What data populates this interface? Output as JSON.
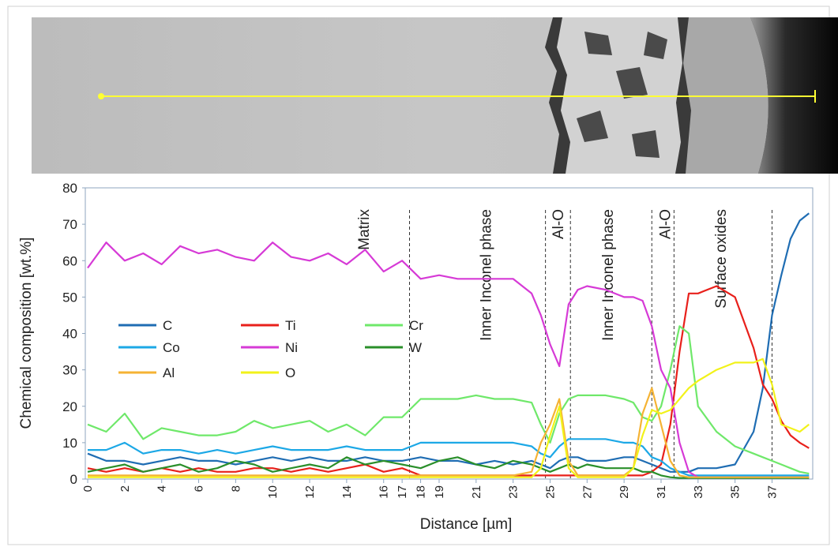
{
  "chart_data": {
    "type": "line",
    "xlabel": "Distance [µm]",
    "ylabel": "Chemical composition [wt.%]",
    "xlim": [
      -0.13,
      39.2
    ],
    "ylim": [
      0,
      80
    ],
    "xticks": [
      0,
      2,
      4,
      6,
      8,
      10,
      12,
      14,
      16,
      17,
      18,
      19,
      21,
      23,
      25,
      27,
      29,
      31,
      33,
      35,
      37
    ],
    "yticks": [
      0,
      10,
      20,
      30,
      40,
      50,
      60,
      70,
      80
    ],
    "x": [
      0,
      1,
      2,
      3,
      4,
      5,
      6,
      7,
      8,
      9,
      10,
      11,
      12,
      13,
      14,
      15,
      16,
      17,
      18,
      19,
      20,
      21,
      22,
      23,
      24,
      24.5,
      25,
      25.5,
      26,
      26.5,
      27,
      28,
      29,
      29.5,
      30,
      30.5,
      31,
      31.5,
      32,
      32.5,
      33,
      34,
      35,
      36,
      36.5,
      37,
      37.5,
      38,
      38.5,
      39
    ],
    "series": [
      {
        "name": "C",
        "color": "#1f6db3",
        "values": [
          7,
          5,
          5,
          4,
          5,
          6,
          5,
          5,
          4,
          5,
          6,
          5,
          6,
          5,
          5,
          6,
          5,
          5,
          6,
          5,
          5,
          4,
          5,
          4,
          5,
          4,
          3,
          5,
          6,
          6,
          5,
          5,
          6,
          6,
          5,
          4,
          3,
          2,
          2,
          2,
          3,
          3,
          4,
          13,
          25,
          45,
          56,
          66,
          71,
          73
        ]
      },
      {
        "name": "Ti",
        "color": "#e8201b",
        "values": [
          3,
          2,
          3,
          2,
          3,
          2,
          3,
          2,
          2,
          3,
          3,
          2,
          3,
          2,
          3,
          4,
          2,
          3,
          1,
          1,
          1,
          1,
          1,
          1,
          1,
          1,
          1,
          1,
          1,
          1,
          1,
          1,
          1,
          1,
          1,
          2,
          4,
          15,
          35,
          51,
          51,
          53,
          50,
          36,
          26,
          22,
          16,
          12,
          10,
          8.5
        ]
      },
      {
        "name": "Cr",
        "color": "#6fe86a",
        "values": [
          15,
          13,
          18,
          11,
          14,
          13,
          12,
          12,
          13,
          16,
          14,
          15,
          16,
          13,
          15,
          12,
          17,
          17,
          22,
          22,
          22,
          23,
          22,
          22,
          21,
          15,
          10,
          18,
          22,
          23,
          23,
          23,
          22,
          21,
          17,
          16,
          20,
          30,
          42,
          40,
          20,
          13,
          9,
          7,
          6,
          5,
          4,
          3,
          2,
          1.5
        ]
      },
      {
        "name": "Co",
        "color": "#1ca8e6",
        "values": [
          8,
          8,
          10,
          7,
          8,
          8,
          7,
          8,
          7,
          8,
          9,
          8,
          8,
          8,
          9,
          8,
          8,
          8,
          10,
          10,
          10,
          10,
          10,
          10,
          9,
          7,
          6,
          9,
          11,
          11,
          11,
          11,
          10,
          10,
          9,
          6,
          5,
          3,
          2,
          1,
          1,
          1,
          1,
          1,
          1,
          1,
          1,
          1,
          1,
          1
        ]
      },
      {
        "name": "Ni",
        "color": "#d63ad6",
        "values": [
          58,
          65,
          60,
          62,
          59,
          64,
          62,
          63,
          61,
          60,
          65,
          61,
          60,
          62,
          59,
          63,
          57,
          60,
          55,
          56,
          55,
          55,
          55,
          55,
          51,
          45,
          37,
          31,
          48,
          52,
          53,
          52,
          50,
          50,
          49,
          42,
          30,
          25,
          10,
          2,
          0.5,
          0.5,
          0.5,
          0.5,
          0.5,
          0.5,
          0.5,
          0.5,
          0.5,
          0.5
        ]
      },
      {
        "name": "W",
        "color": "#2a8f2a",
        "values": [
          2,
          3,
          4,
          2,
          3,
          4,
          2,
          3,
          5,
          4,
          2,
          3,
          4,
          3,
          6,
          4,
          5,
          4,
          3,
          5,
          6,
          4,
          3,
          5,
          4,
          3,
          2,
          3,
          4,
          3,
          4,
          3,
          3,
          3,
          2,
          2,
          1,
          0.5,
          0.3,
          0.3,
          0.3,
          0.3,
          0.3,
          0.3,
          0.3,
          0.3,
          0.3,
          0.3,
          0.3,
          0.3
        ]
      },
      {
        "name": "Al",
        "color": "#f5b334",
        "values": [
          1,
          1,
          1,
          1,
          1,
          1,
          1,
          1,
          1,
          1,
          1,
          1,
          1,
          1,
          1,
          1,
          1,
          1,
          1,
          1,
          1,
          1,
          1,
          1,
          2,
          10,
          15,
          22,
          5,
          1,
          1,
          1,
          1,
          3,
          18,
          25,
          15,
          5,
          1,
          0.5,
          0.5,
          0.5,
          0.5,
          0.5,
          0.5,
          0.5,
          0.5,
          0.5,
          0.5,
          0.5
        ]
      },
      {
        "name": "O",
        "color": "#f2f21a",
        "values": [
          0.5,
          0.5,
          0.5,
          0.5,
          0.5,
          0.5,
          0.5,
          0.5,
          0.5,
          0.5,
          0.5,
          0.5,
          0.5,
          0.5,
          0.5,
          0.5,
          0.5,
          0.5,
          0.5,
          0.5,
          0.5,
          0.5,
          0.5,
          0.5,
          0.5,
          3,
          12,
          20,
          3,
          0.5,
          0.5,
          0.5,
          0.5,
          3,
          12,
          19,
          18,
          19,
          22,
          25,
          27,
          30,
          32,
          32,
          33,
          26,
          15,
          14,
          13,
          15
        ]
      }
    ],
    "dividers": [
      17.4,
      24.75,
      26.1,
      30.5,
      31.7,
      37.0
    ],
    "annotations": [
      {
        "text": "Matrix",
        "x": 14.9
      },
      {
        "text": "Inner Inconel phase",
        "x": 21.5
      },
      {
        "text": "Al-O",
        "x": 25.4
      },
      {
        "text": "Inner Inconel phase",
        "x": 28.1
      },
      {
        "text": "Al-O",
        "x": 31.2
      },
      {
        "text": "Surface oxides",
        "x": 34.2
      }
    ]
  }
}
